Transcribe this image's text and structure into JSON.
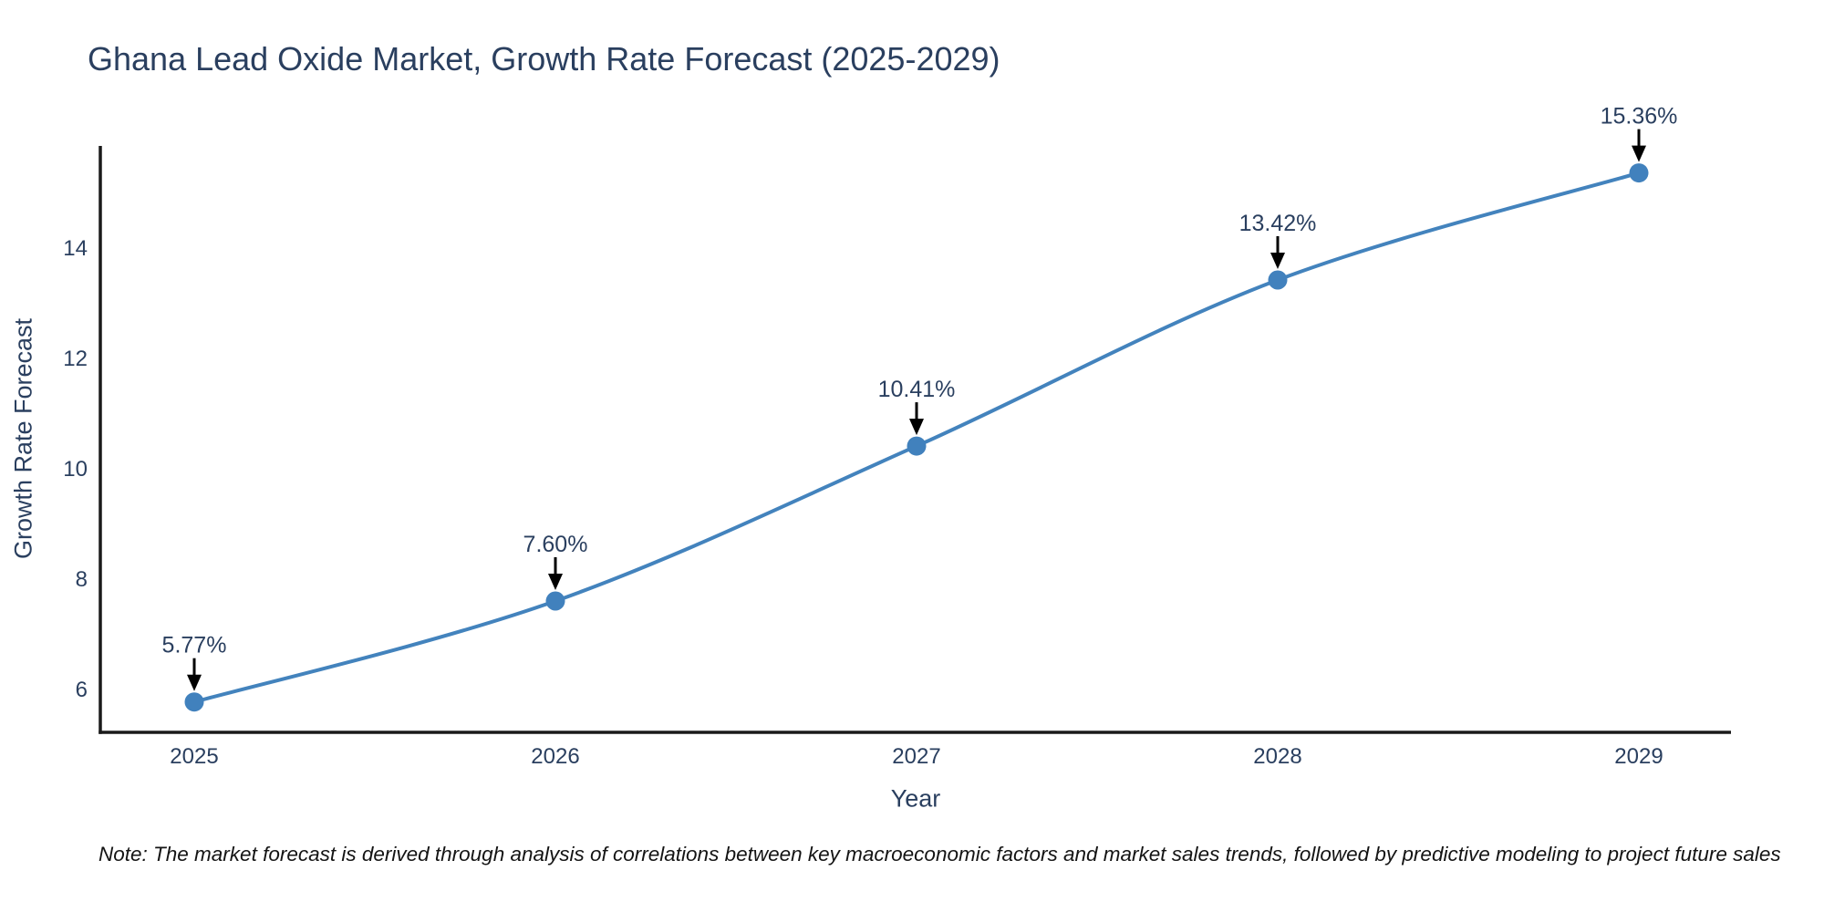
{
  "title": "Ghana Lead Oxide Market, Growth Rate Forecast (2025-2029)",
  "footnote": "Note: The market forecast is derived through analysis of correlations between key macroeconomic factors and market sales trends, followed by predictive modeling to project future sales",
  "chart_data": {
    "type": "line",
    "title": "Ghana Lead Oxide Market, Growth Rate Forecast (2025-2029)",
    "xlabel": "Year",
    "ylabel": "Growth Rate Forecast",
    "categories": [
      "2025",
      "2026",
      "2027",
      "2028",
      "2029"
    ],
    "values": [
      5.77,
      7.6,
      10.41,
      13.42,
      15.36
    ],
    "point_labels": [
      "5.77%",
      "7.60%",
      "10.41%",
      "13.42%",
      "15.36%"
    ],
    "yticks": [
      6,
      8,
      10,
      12,
      14
    ],
    "ylim": [
      5.22,
      15.85
    ],
    "line_shape": "spline",
    "grid": false,
    "legend_position": "none",
    "colors": {
      "line": "#4383bd",
      "marker": "#4181bd",
      "axis": "#1a1a1a",
      "tick_text": "#2a3f5f",
      "annotation_text": "#2a3f5f",
      "arrow": "#000000"
    }
  }
}
